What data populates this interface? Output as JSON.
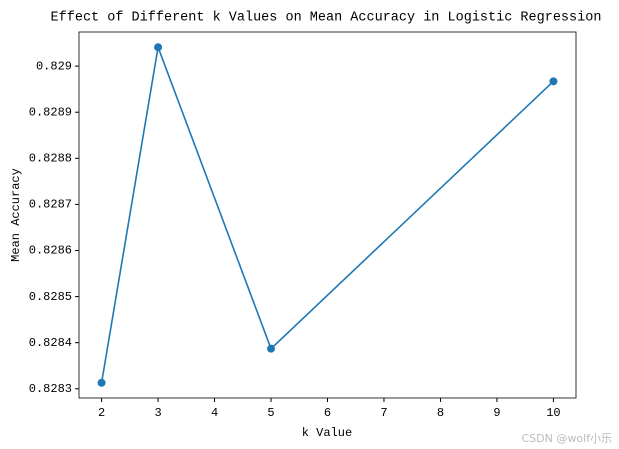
{
  "chart_data": {
    "type": "line",
    "title": "Effect of Different k Values on Mean Accuracy in Logistic Regression",
    "x_label": "k Value",
    "y_label": "Mean Accuracy",
    "x": [
      2,
      3,
      5,
      10
    ],
    "series": [
      {
        "name": "Mean Accuracy",
        "color": "#1f77b4",
        "values": [
          0.828313,
          0.829041,
          0.828387,
          0.828967
        ]
      }
    ],
    "xlim": [
      1.6,
      10.4
    ],
    "xticks": [
      2,
      3,
      4,
      5,
      6,
      7,
      8,
      9,
      10
    ],
    "ylim": [
      0.82828,
      0.829074
    ],
    "yticks": [
      0.8283,
      0.8284,
      0.8285,
      0.8286,
      0.8287,
      0.8288,
      0.8289,
      0.829
    ],
    "watermark": "CSDN @wolf小乐"
  }
}
